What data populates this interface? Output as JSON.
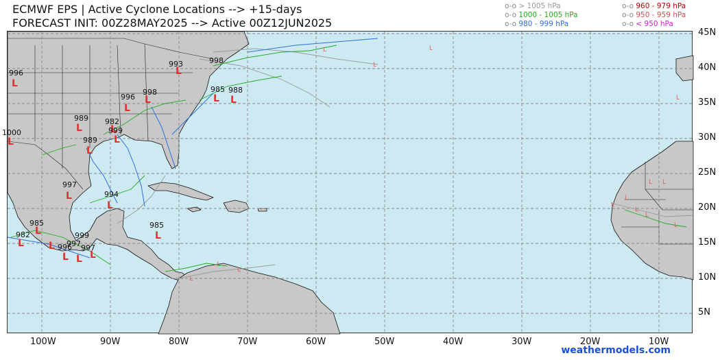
{
  "header": {
    "title_line1": "ECMWF EPS | Active Cyclone Locations --> +15-days",
    "title_line2": "FORECAST INIT: 00Z28MAY2025 --> Active 00Z12JUN2025"
  },
  "legend": {
    "symbol": "o-o",
    "items": [
      {
        "label": "> 1005 hPa",
        "color": "#9a9a9a"
      },
      {
        "label": "1000 - 1005 hPa",
        "color": "#22aa22"
      },
      {
        "label": "980 - 999 hPa",
        "color": "#2f6fe0"
      },
      {
        "label": "960 - 979 hPa",
        "color": "#b00000"
      },
      {
        "label": "950 - 959 hPa",
        "color": "#d05050"
      },
      {
        "label": "< 950 hPa",
        "color": "#cc22cc"
      }
    ]
  },
  "map": {
    "lon_labels": [
      "100W",
      "90W",
      "80W",
      "70W",
      "60W",
      "50W",
      "40W",
      "30W",
      "20W",
      "10W"
    ],
    "lat_labels": [
      "45N",
      "40N",
      "35N",
      "30N",
      "25N",
      "20N",
      "15N",
      "10N",
      "5N"
    ],
    "pressure_labels": [
      "996",
      "993",
      "998",
      "985",
      "988",
      "996",
      "998",
      "989",
      "982",
      "999",
      "1000",
      "989",
      "997",
      "994",
      "985",
      "982",
      "985",
      "999",
      "997",
      "996",
      "997"
    ],
    "colors": {
      "ocean": "#cde9f2",
      "land": "#c8c8c8",
      "coast": "#000000",
      "grid": "#888888",
      "low_marker": "#e03030"
    }
  },
  "credit": "weathermodels.com"
}
